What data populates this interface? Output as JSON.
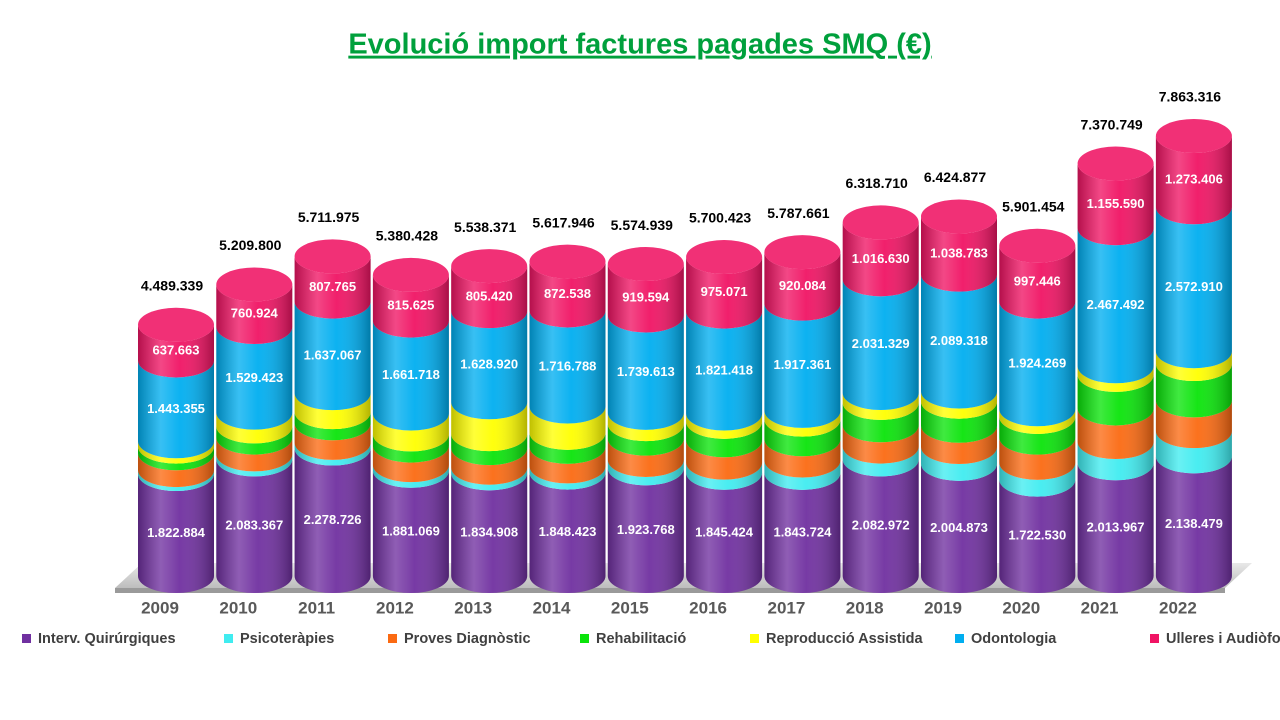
{
  "chart_data": {
    "type": "bar3d-stacked",
    "title": "Evolució import factures pagades SMQ (€)",
    "categories": [
      "2009",
      "2010",
      "2011",
      "2012",
      "2013",
      "2014",
      "2015",
      "2016",
      "2017",
      "2018",
      "2019",
      "2020",
      "2021",
      "2022"
    ],
    "series": [
      {
        "name": "Interv. Quirúrgiques",
        "color": "#7030a0",
        "values": [
          1822884,
          2083367,
          2278726,
          1881069,
          1834908,
          1848423,
          1923768,
          1845424,
          1843724,
          2082972,
          2004873,
          1722530,
          2013967,
          2138479
        ],
        "value_labels": [
          "1.822.884",
          "2.083.367",
          "2.278.726",
          "1.881.069",
          "1.834.908",
          "1.848.423",
          "1.923.768",
          "1.845.424",
          "1.843.724",
          "2.082.972",
          "2.004.873",
          "1.722.530",
          "2.013.967",
          "2.138.479"
        ]
      },
      {
        "name": "Psicoteràpies",
        "color": "#40ecf0",
        "values": [
          70000,
          90000,
          100000,
          100000,
          100000,
          110000,
          150000,
          180000,
          220000,
          230000,
          300000,
          300000,
          380000,
          450000
        ]
      },
      {
        "name": "Proves Diagnòstic",
        "color": "#fb6a12",
        "values": [
          300000,
          300000,
          350000,
          350000,
          350000,
          350000,
          380000,
          400000,
          380000,
          380000,
          380000,
          450000,
          600000,
          550000
        ]
      },
      {
        "name": "Rehabilitació",
        "color": "#0ae40a",
        "values": [
          120000,
          200000,
          200000,
          200000,
          250000,
          250000,
          260000,
          330000,
          350000,
          400000,
          430000,
          370000,
          600000,
          650000
        ]
      },
      {
        "name": "Reproducció Assistida",
        "color": "#ffff00",
        "values": [
          95437,
          246086,
          338417,
          372016,
          569123,
          470197,
          201964,
          148510,
          156492,
          177779,
          181903,
          137209,
          153700,
          228521
        ]
      },
      {
        "name": "Odontologia",
        "color": "#00aef0",
        "values": [
          1443355,
          1529423,
          1637067,
          1661718,
          1628920,
          1716788,
          1739613,
          1821418,
          1917361,
          2031329,
          2089318,
          1924269,
          2467492,
          2572910
        ],
        "value_labels": [
          "1.443.355",
          "1.529.423",
          "1.637.067",
          "1.661.718",
          "1.628.920",
          "1.716.788",
          "1.739.613",
          "1.821.418",
          "1.917.361",
          "2.031.329",
          "2.089.318",
          "1.924.269",
          "2.467.492",
          "2.572.910"
        ]
      },
      {
        "name": "Ulleres i Audiòfons",
        "color": "#f01464",
        "values": [
          637663,
          760924,
          807765,
          815625,
          805420,
          872538,
          919594,
          975071,
          920084,
          1016630,
          1038783,
          997446,
          1155590,
          1273406
        ],
        "value_labels": [
          "637.663",
          "760.924",
          "807.765",
          "815.625",
          "805.420",
          "872.538",
          "919.594",
          "975.071",
          "920.084",
          "1.016.630",
          "1.038.783",
          "997.446",
          "1.155.590",
          "1.273.406"
        ]
      }
    ],
    "totals": {
      "values": [
        4489339,
        5209800,
        5711975,
        5380428,
        5538371,
        5617946,
        5574939,
        5700423,
        5787661,
        6318710,
        6424877,
        5901454,
        7370749,
        7863316
      ],
      "value_labels": [
        "4.489.339",
        "5.209.800",
        "5.711.975",
        "5.380.428",
        "5.538.371",
        "5.617.946",
        "5.574.939",
        "5.700.423",
        "5.787.661",
        "6.318.710",
        "6.424.877",
        "5.901.454",
        "7.370.749",
        "7.863.316"
      ]
    }
  }
}
